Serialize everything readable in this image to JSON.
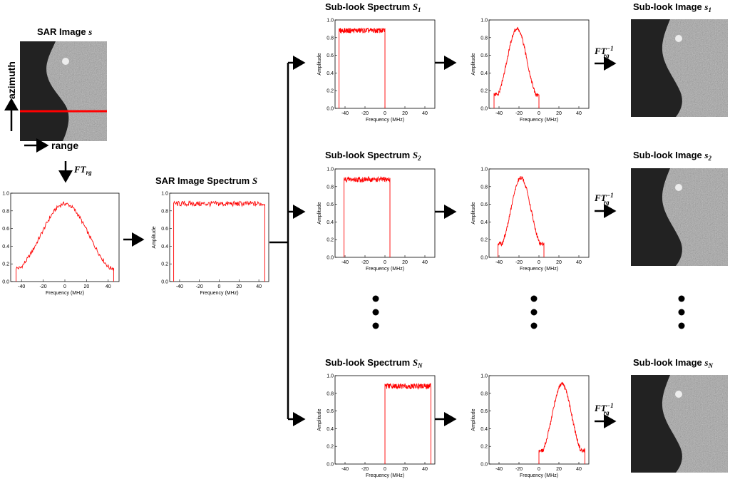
{
  "titles": {
    "sar_image": "SAR Image",
    "sar_image_var": "s",
    "spectrum": "SAR Image Spectrum",
    "spectrum_var": "S",
    "sub1": "Sub-look Spectrum",
    "sub1_var": "S",
    "sub1_sub": "1",
    "sub2": "Sub-look Spectrum",
    "sub2_var": "S",
    "sub2_sub": "2",
    "subN": "Sub-look Spectrum",
    "subN_var": "S",
    "subN_sub": "N",
    "img1": "Sub-look Image",
    "img1_var": "s",
    "img1_sub": "1",
    "img2": "Sub-look Image",
    "img2_var": "s",
    "img2_sub": "2",
    "imgN": "Sub-look Image",
    "imgN_var": "s",
    "imgN_sub": "N"
  },
  "labels": {
    "azimuth": "azimuth",
    "range": "range",
    "ft_main": "FT",
    "ft_sub": "rg",
    "ft_inv_main": "FT",
    "ft_inv_sup": "−1",
    "ft_inv_sub": "rg"
  },
  "colors": {
    "curve": "#ff0000",
    "arrow": "#000000"
  },
  "chart_data": [
    {
      "id": "range-profile-spectrum",
      "type": "line",
      "xlabel": "Frequency (MHz)",
      "ylabel": "Amplitude",
      "xlim": [
        -50,
        50
      ],
      "ylim": [
        0,
        1.0
      ],
      "xticks": [
        "-40",
        "-20",
        "0",
        "20",
        "40"
      ],
      "yticks": [
        "0.0",
        "0.2",
        "0.4",
        "0.6",
        "0.8",
        "1.0"
      ],
      "shape": "gaussian",
      "band": [
        -45,
        45
      ],
      "center": 0,
      "peak": 0.88,
      "sigma": 22,
      "edge": 0.18
    },
    {
      "id": "sar-image-spectrum",
      "type": "line",
      "xlabel": "Frequency (MHz)",
      "ylabel": "Amplitude",
      "xlim": [
        -50,
        50
      ],
      "ylim": [
        0,
        1.0
      ],
      "xticks": [
        "-40",
        "-20",
        "0",
        "20",
        "40"
      ],
      "yticks": [
        "0.0",
        "0.2",
        "0.4",
        "0.6",
        "0.8",
        "1.0"
      ],
      "shape": "flat",
      "band": [
        -46,
        46
      ],
      "level": 0.88,
      "edge_dip": 0.3
    },
    {
      "id": "sub-look-spectrum-1",
      "type": "line",
      "xlabel": "Frequency (MHz)",
      "ylabel": "Amplitude",
      "xlim": [
        -50,
        50
      ],
      "ylim": [
        0,
        1.0
      ],
      "xticks": [
        "-40",
        "-20",
        "0",
        "20",
        "40"
      ],
      "yticks": [
        "0.0",
        "0.2",
        "0.4",
        "0.6",
        "0.8",
        "1.0"
      ],
      "shape": "flat",
      "band": [
        -46,
        0
      ],
      "level": 0.88,
      "edge_dip": 0.0
    },
    {
      "id": "weighted-sub-look-1",
      "type": "line",
      "xlabel": "Frequency (MHz)",
      "ylabel": "Amplitude",
      "xlim": [
        -50,
        50
      ],
      "ylim": [
        0,
        1.0
      ],
      "xticks": [
        "-40",
        "-20",
        "0",
        "20",
        "40"
      ],
      "yticks": [
        "0.0",
        "0.2",
        "0.4",
        "0.6",
        "0.8",
        "1.0"
      ],
      "shape": "gaussian",
      "band": [
        -45,
        0
      ],
      "center": -22,
      "peak": 0.9,
      "sigma": 10,
      "edge": 0.18
    },
    {
      "id": "sub-look-spectrum-2",
      "type": "line",
      "xlabel": "Frequency (MHz)",
      "ylabel": "Amplitude",
      "xlim": [
        -50,
        50
      ],
      "ylim": [
        0,
        1.0
      ],
      "xticks": [
        "-40",
        "-20",
        "0",
        "20",
        "40"
      ],
      "yticks": [
        "0.0",
        "0.2",
        "0.4",
        "0.6",
        "0.8",
        "1.0"
      ],
      "shape": "flat",
      "band": [
        -41,
        5
      ],
      "level": 0.88,
      "edge_dip": 0.0
    },
    {
      "id": "weighted-sub-look-2",
      "type": "line",
      "xlabel": "Frequency (MHz)",
      "ylabel": "Amplitude",
      "xlim": [
        -50,
        50
      ],
      "ylim": [
        0,
        1.0
      ],
      "xticks": [
        "-40",
        "-20",
        "0",
        "20",
        "40"
      ],
      "yticks": [
        "0.0",
        "0.2",
        "0.4",
        "0.6",
        "0.8",
        "1.0"
      ],
      "shape": "gaussian",
      "band": [
        -41,
        5
      ],
      "center": -18,
      "peak": 0.9,
      "sigma": 10,
      "edge": 0.18
    },
    {
      "id": "sub-look-spectrum-n",
      "type": "line",
      "xlabel": "Frequency (MHz)",
      "ylabel": "Amplitude",
      "xlim": [
        -50,
        50
      ],
      "ylim": [
        0,
        1.0
      ],
      "xticks": [
        "-40",
        "-20",
        "0",
        "20",
        "40"
      ],
      "yticks": [
        "0.0",
        "0.2",
        "0.4",
        "0.6",
        "0.8",
        "1.0"
      ],
      "shape": "flat",
      "band": [
        0,
        46
      ],
      "level": 0.88,
      "edge_dip": 0.0
    },
    {
      "id": "weighted-sub-look-n",
      "type": "line",
      "xlabel": "Frequency (MHz)",
      "ylabel": "Amplitude",
      "xlim": [
        -50,
        50
      ],
      "ylim": [
        0,
        1.0
      ],
      "xticks": [
        "-40",
        "-20",
        "0",
        "20",
        "40"
      ],
      "yticks": [
        "0.0",
        "0.2",
        "0.4",
        "0.6",
        "0.8",
        "1.0"
      ],
      "shape": "gaussian",
      "band": [
        0,
        46
      ],
      "center": 23,
      "peak": 0.9,
      "sigma": 10,
      "edge": 0.18
    }
  ]
}
